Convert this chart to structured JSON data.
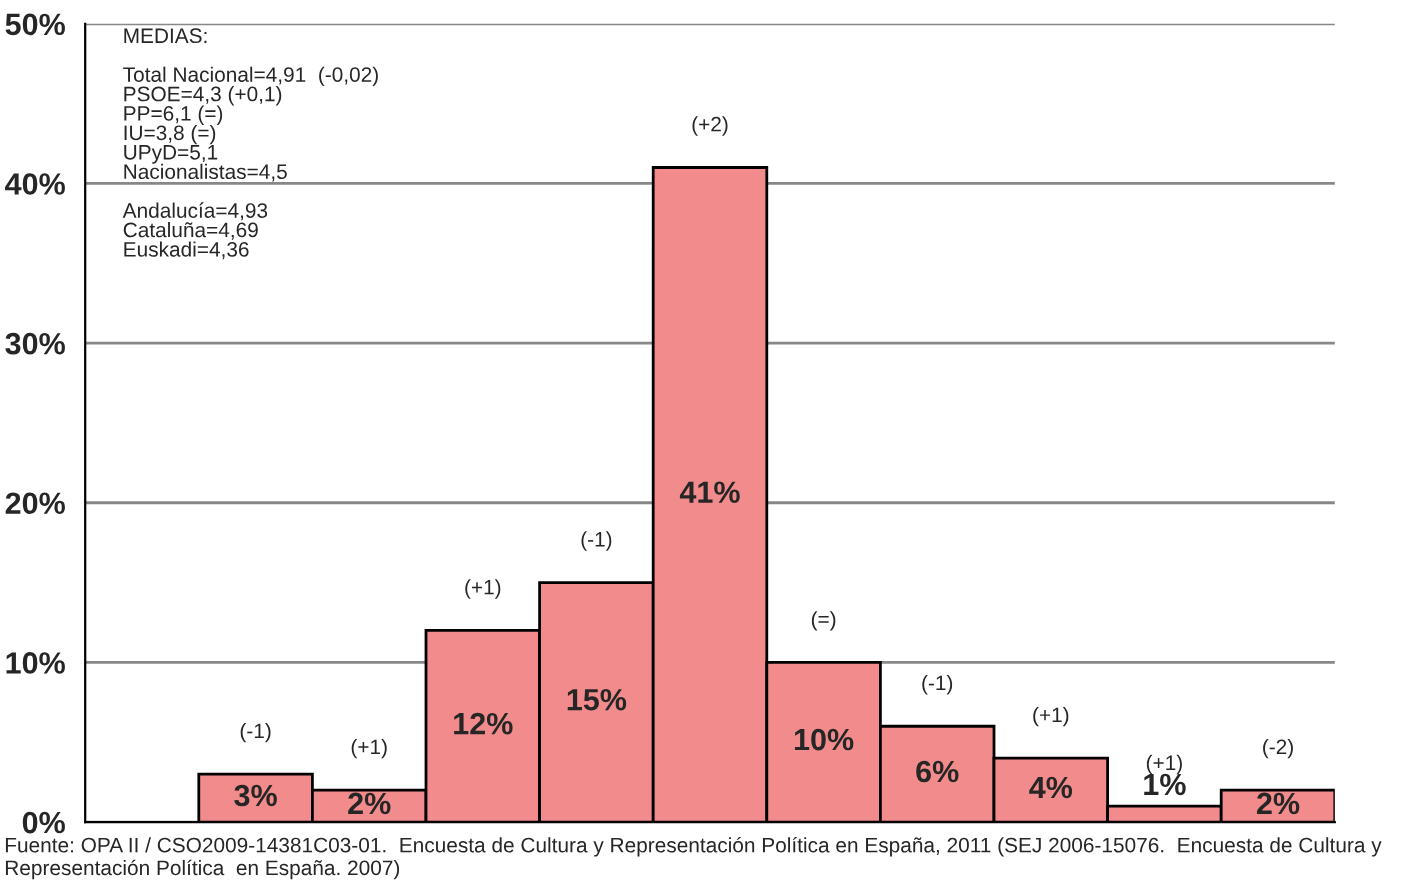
{
  "chart_data": {
    "type": "bar",
    "categories": [
      null,
      null,
      null,
      null,
      null,
      null,
      null,
      null,
      null,
      null,
      null
    ],
    "values": [
      null,
      3,
      2,
      12,
      15,
      41,
      10,
      6,
      4,
      1,
      2
    ],
    "value_labels": [
      null,
      "3%",
      "2%",
      "12%",
      "15%",
      "41%",
      "10%",
      "6%",
      "4%",
      "1%",
      "2%"
    ],
    "color": "#f28b8b",
    "ylim": [
      0,
      50
    ],
    "yticks": [
      {
        "value": 0,
        "label": "0%"
      },
      {
        "value": 10,
        "label": "10%"
      },
      {
        "value": 20,
        "label": "20%"
      },
      {
        "value": 30,
        "label": "30%"
      },
      {
        "value": 40,
        "label": "40%"
      },
      {
        "value": 50,
        "label": "50%"
      }
    ],
    "grid": "y",
    "annotations": [
      "MEDIAS:\n\nTotal Nacional=4,91  (-0,02)\nPSOE=4,3 (+0,1)\nPP=6,1 (=)\nIU=3,8 (=)\nUPyD=5,1\nNacionalistas=4,5\n\nAndalucía=4,93\nCataluña=4,69\nEuskadi=4,36",
      "(-1)",
      "(+1)",
      "(+1)",
      "(-1)",
      "(+2)",
      "(=)",
      "(-1)",
      "(+1)",
      "(+1)",
      "(-2)",
      "Fuente: OPA II / CSO2009-14381C03-01.  Encuesta de Cultura y Representación Política en España, 2011 (SEJ 2006-15076.  Encuesta de Cultura y Representación Política  en España. 2007)"
    ]
  }
}
